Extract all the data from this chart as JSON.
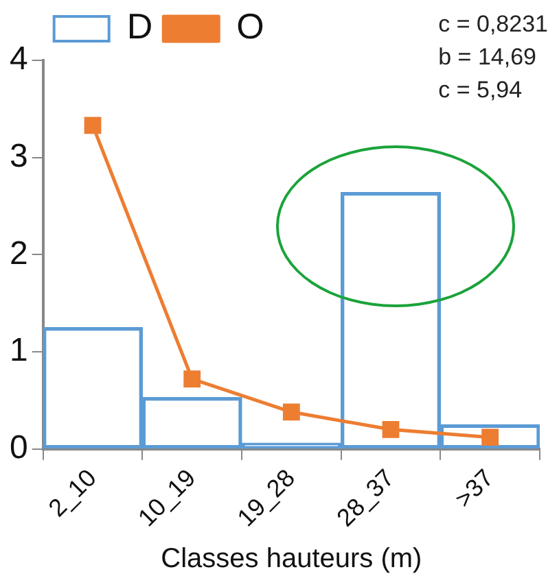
{
  "chart_data": {
    "type": "bar",
    "xlabel": "Classes hauteurs (m)",
    "categories": [
      "2_10",
      "10_19",
      "19_28",
      "28_37",
      ">37"
    ],
    "series": [
      {
        "name": "D",
        "color": "#5b9bd5",
        "values": [
          1.25,
          0.53,
          0.06,
          2.64,
          0.25
        ]
      },
      {
        "name": "O",
        "type": "line",
        "color": "#ed7d31",
        "values": [
          3.33,
          0.72,
          0.38,
          0.2,
          0.12
        ]
      }
    ],
    "ylim": [
      0,
      4
    ],
    "yticks": [
      0,
      1,
      2,
      3,
      4
    ],
    "grid": false,
    "legend": "top",
    "marker": "square",
    "line_style": "solid",
    "annotations": [
      "c = 0,8231",
      "b = 14,69",
      "c = 5,94"
    ]
  }
}
